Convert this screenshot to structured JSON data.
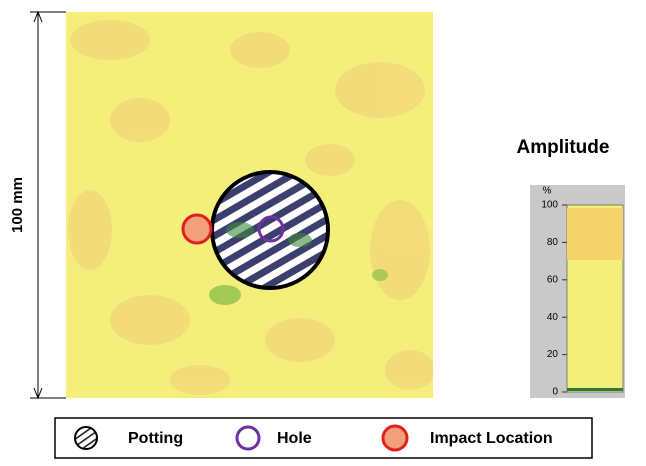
{
  "figure": {
    "dimension_label": "100 mm",
    "colorbar": {
      "title": "Amplitude",
      "unit": "%",
      "range": [
        0,
        100
      ],
      "ticks": [
        0,
        20,
        40,
        60,
        80,
        100
      ]
    },
    "legend": {
      "items": [
        "Potting",
        "Hole",
        "Impact Location"
      ]
    }
  }
}
